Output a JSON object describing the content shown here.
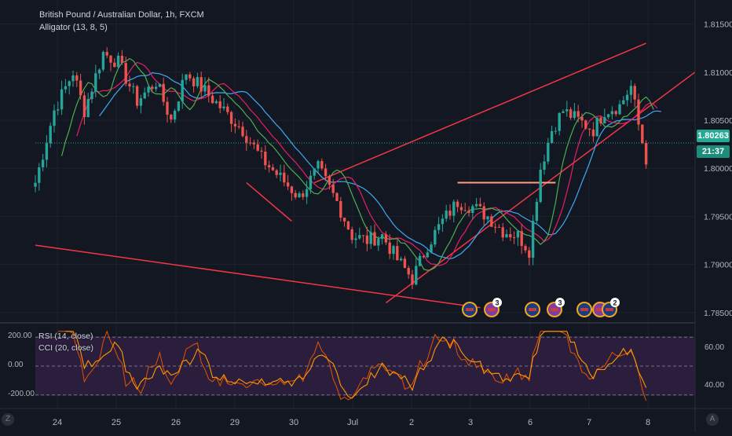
{
  "header": {
    "title": "British Pound / Australian Dollar, 1h, FXCM",
    "indicator": "Alligator (13, 8, 5)"
  },
  "price_axis": {
    "labels": [
      "1.81500",
      "1.81000",
      "1.80500",
      "1.80000",
      "1.79500",
      "1.79000",
      "1.78500"
    ],
    "current_price": "1.80263",
    "countdown": "21:37"
  },
  "time_axis": {
    "labels": [
      "24",
      "25",
      "26",
      "29",
      "30",
      "Jul",
      "2",
      "3",
      "6",
      "7",
      "8"
    ]
  },
  "indicator_pane": {
    "rsi_label": "RSI (14, close)",
    "cci_label": "CCI (20, close)",
    "left_labels": [
      "200.00",
      "0.00",
      "-200.00"
    ],
    "right_labels": [
      "60.00",
      "40.00"
    ]
  },
  "event_markers": [
    {
      "count": ""
    },
    {
      "count": "3"
    },
    {
      "count": ""
    },
    {
      "count": "3"
    },
    {
      "count": ""
    },
    {
      "count": ""
    },
    {
      "count": "2"
    }
  ],
  "corner_buttons": {
    "left": "Z",
    "right": "A"
  },
  "colors": {
    "background": "#131722",
    "up_candle": "#26a69a",
    "down_candle": "#ef5350",
    "trendline": "#f23645",
    "jaw": "#3fa9f5",
    "teeth": "#e91e63",
    "lips": "#4caf50",
    "rsi": "#ff9800",
    "cci": "#e65100",
    "support": "#ff9e80"
  },
  "chart_data": {
    "type": "candlestick",
    "symbol": "GBPAUD",
    "interval": "1h",
    "ylim": [
      1.784,
      1.8175
    ],
    "guide_points": [
      [
        0,
        1.7985
      ],
      [
        5,
        1.806
      ],
      [
        10,
        1.81
      ],
      [
        13,
        1.806
      ],
      [
        18,
        1.812
      ],
      [
        22,
        1.811
      ],
      [
        27,
        1.807
      ],
      [
        32,
        1.809
      ],
      [
        36,
        1.805
      ],
      [
        40,
        1.81
      ],
      [
        45,
        1.808
      ],
      [
        50,
        1.806
      ],
      [
        55,
        1.804
      ],
      [
        60,
        1.801
      ],
      [
        65,
        1.799
      ],
      [
        70,
        1.797
      ],
      [
        75,
        1.8
      ],
      [
        80,
        1.7965
      ],
      [
        84,
        1.793
      ],
      [
        88,
        1.7925
      ],
      [
        92,
        1.793
      ],
      [
        96,
        1.7905
      ],
      [
        100,
        1.7885
      ],
      [
        104,
        1.792
      ],
      [
        108,
        1.7945
      ],
      [
        112,
        1.7965
      ],
      [
        116,
        1.796
      ],
      [
        120,
        1.795
      ],
      [
        124,
        1.7935
      ],
      [
        128,
        1.793
      ],
      [
        131,
        1.7915
      ],
      [
        134,
        1.8
      ],
      [
        137,
        1.804
      ],
      [
        140,
        1.806
      ],
      [
        144,
        1.805
      ],
      [
        148,
        1.804
      ],
      [
        151,
        1.806
      ],
      [
        155,
        1.8065
      ],
      [
        158,
        1.8085
      ],
      [
        160,
        1.8045
      ],
      [
        162,
        1.801
      ]
    ],
    "trendlines": [
      {
        "from": [
          56,
          1.7985
        ],
        "to": [
          68,
          1.7945
        ]
      },
      {
        "from": [
          74,
          1.7985
        ],
        "to": [
          162,
          1.813
        ]
      },
      {
        "from": [
          93,
          1.786
        ],
        "to": [
          175,
          1.81
        ]
      },
      {
        "from": [
          0,
          1.792
        ],
        "to": [
          118,
          1.7855
        ]
      },
      {
        "from": [
          112,
          1.7985
        ],
        "to": [
          138,
          1.7985
        ]
      }
    ],
    "time_labels": [
      "24",
      "25",
      "26",
      "29",
      "30",
      "Jul",
      "2",
      "3",
      "6",
      "7",
      "8"
    ],
    "alligator": {
      "jaw": 13,
      "teeth": 8,
      "lips": 5
    },
    "rsi_levels": [
      70,
      30
    ],
    "cci_levels": [
      100,
      -100
    ],
    "rsi_ylim": [
      25,
      75
    ]
  }
}
